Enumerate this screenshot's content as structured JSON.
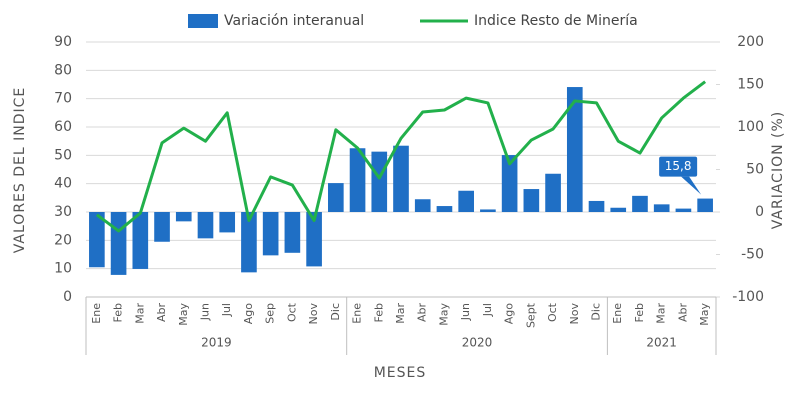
{
  "chart_data": {
    "type": "bar+line",
    "categories": [
      "Ene",
      "Feb",
      "Mar",
      "Abr",
      "May",
      "Jun",
      "Jul",
      "Ago",
      "Sep",
      "Oct",
      "Nov",
      "Dic",
      "Ene",
      "Feb",
      "Mar",
      "Abr",
      "May",
      "Jun",
      "Jul",
      "Ago",
      "Sept",
      "Oct",
      "Nov",
      "Dic",
      "Ene",
      "Feb",
      "Mar",
      "Abr",
      "May"
    ],
    "groups": [
      {
        "label": "2019",
        "size": 12
      },
      {
        "label": "2020",
        "size": 12
      },
      {
        "label": "2021",
        "size": 5
      }
    ],
    "series": [
      {
        "name": "Variación interanual",
        "type": "bar",
        "axis": "y2",
        "color": "#1f6fc5",
        "values": [
          -65,
          -74,
          -67,
          -35,
          -11,
          -31,
          -24,
          -71,
          -51,
          -48,
          -64,
          34,
          75,
          71,
          78,
          15,
          7,
          25,
          3,
          67,
          27,
          45,
          147,
          13,
          5,
          19,
          9,
          4,
          15.8
        ],
        "value_labels": [
          null,
          null,
          null,
          null,
          null,
          null,
          null,
          null,
          null,
          null,
          null,
          null,
          null,
          null,
          null,
          null,
          null,
          null,
          null,
          null,
          null,
          null,
          null,
          null,
          null,
          null,
          null,
          null,
          "15,8"
        ]
      },
      {
        "name": "Indice Resto de Minería",
        "type": "line",
        "color": "#22b04b",
        "values": [
          29,
          23.3,
          29.6,
          54.4,
          59.6,
          55,
          65,
          27,
          42.4,
          39.5,
          27,
          59,
          52.6,
          42,
          56,
          65.3,
          66,
          70.2,
          68.5,
          47,
          55.4,
          59.3,
          69.2,
          68.5,
          55,
          50.8,
          63.2,
          70.2,
          76
        ]
      }
    ],
    "ylabel": "VALORES DEL INDICE",
    "y2label": "VARIACION (%)",
    "xlabel": "MESES",
    "ylim": [
      0,
      90
    ],
    "yticks": [
      0,
      10,
      20,
      30,
      40,
      50,
      60,
      70,
      80,
      90
    ],
    "y2lim": [
      -100,
      200
    ],
    "y2ticks": [
      -100,
      -50,
      0,
      50,
      100,
      150,
      200
    ],
    "grid": true
  }
}
